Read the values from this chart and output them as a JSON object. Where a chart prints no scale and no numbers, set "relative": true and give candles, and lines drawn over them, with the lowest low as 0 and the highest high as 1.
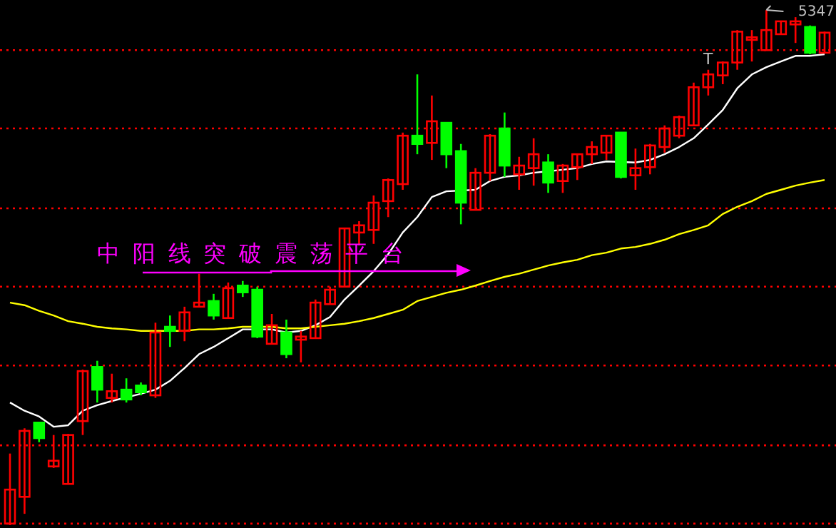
{
  "chart_data": {
    "type": "candlestick",
    "relative": true,
    "categories": [
      null,
      null,
      null,
      null,
      null,
      null,
      null,
      null,
      null,
      null,
      null,
      null,
      null,
      null,
      null,
      null,
      null,
      null,
      null,
      null,
      null,
      null,
      null,
      null,
      null,
      null,
      null,
      null,
      null,
      null,
      null,
      null,
      null,
      null,
      null,
      null,
      null,
      null,
      null,
      null,
      null,
      null,
      null,
      null,
      null,
      null,
      null,
      null,
      null,
      null,
      null,
      null,
      null,
      null,
      null,
      null,
      null
    ],
    "ohlc": [
      [
        0.003,
        0.139,
        0,
        0.069
      ],
      [
        0.055,
        0.188,
        0.022,
        0.183
      ],
      [
        0.199,
        0.199,
        0.161,
        0.169
      ],
      [
        0.114,
        0.175,
        0.111,
        0.125
      ],
      [
        0.08,
        0.177,
        0.08,
        0.175
      ],
      [
        0.202,
        0.302,
        0.175,
        0.299
      ],
      [
        0.307,
        0.319,
        0.238,
        0.263
      ],
      [
        0.247,
        0.294,
        0.238,
        0.26
      ],
      [
        0.263,
        0.285,
        0.238,
        0.244
      ],
      [
        0.271,
        0.277,
        0.252,
        0.258
      ],
      [
        0.252,
        0.393,
        0.247,
        0.374
      ],
      [
        0.385,
        0.407,
        0.346,
        0.377
      ],
      [
        0.377,
        0.424,
        0.357,
        0.413
      ],
      [
        0.424,
        0.488,
        0.424,
        0.432
      ],
      [
        0.435,
        0.449,
        0.399,
        0.407
      ],
      [
        0.402,
        0.471,
        0.402,
        0.46
      ],
      [
        0.465,
        0.474,
        0.443,
        0.452
      ],
      [
        0.457,
        0.463,
        0.363,
        0.366
      ],
      [
        0.352,
        0.41,
        0.352,
        0.388
      ],
      [
        0.374,
        0.399,
        0.324,
        0.332
      ],
      [
        0.36,
        0.377,
        0.316,
        0.366
      ],
      [
        0.363,
        0.438,
        0.363,
        0.432
      ],
      [
        0.429,
        0.463,
        0.429,
        0.457
      ],
      [
        0.463,
        0.576,
        0.463,
        0.576
      ],
      [
        0.568,
        0.59,
        0.543,
        0.582
      ],
      [
        0.573,
        0.64,
        0.546,
        0.626
      ],
      [
        0.629,
        0.673,
        0.598,
        0.67
      ],
      [
        0.662,
        0.762,
        0.651,
        0.756
      ],
      [
        0.756,
        0.875,
        0.72,
        0.74
      ],
      [
        0.742,
        0.834,
        0.709,
        0.784
      ],
      [
        0.781,
        0.781,
        0.693,
        0.72
      ],
      [
        0.726,
        0.74,
        0.584,
        0.626
      ],
      [
        0.612,
        0.693,
        0.612,
        0.684
      ],
      [
        0.684,
        0.759,
        0.668,
        0.756
      ],
      [
        0.77,
        0.801,
        0.676,
        0.698
      ],
      [
        0.681,
        0.715,
        0.651,
        0.698
      ],
      [
        0.693,
        0.751,
        0.659,
        0.72
      ],
      [
        0.704,
        0.72,
        0.645,
        0.665
      ],
      [
        0.668,
        0.701,
        0.645,
        0.698
      ],
      [
        0.695,
        0.72,
        0.67,
        0.72
      ],
      [
        0.72,
        0.745,
        0.701,
        0.734
      ],
      [
        0.723,
        0.756,
        0.709,
        0.756
      ],
      [
        0.762,
        0.762,
        0.673,
        0.676
      ],
      [
        0.679,
        0.731,
        0.651,
        0.693
      ],
      [
        0.695,
        0.74,
        0.681,
        0.737
      ],
      [
        0.734,
        0.776,
        0.723,
        0.77
      ],
      [
        0.756,
        0.795,
        0.751,
        0.792
      ],
      [
        0.776,
        0.859,
        0.776,
        0.85
      ],
      [
        0.85,
        0.884,
        0.834,
        0.875
      ],
      [
        0.873,
        0.9,
        0.856,
        0.898
      ],
      [
        0.898,
        0.961,
        0.884,
        0.958
      ],
      [
        0.942,
        0.961,
        0.9,
        0.947
      ],
      [
        0.922,
        1.0,
        0.922,
        0.961
      ],
      [
        0.953,
        0.978,
        0.953,
        0.978
      ],
      [
        0.972,
        0.986,
        0.936,
        0.978
      ],
      [
        0.967,
        0.97,
        0.914,
        0.917
      ],
      [
        0.917,
        0.958,
        0.917,
        0.956
      ]
    ],
    "colors": [
      "#ff0000",
      "#ff0000",
      "#00ff00",
      "#ff0000",
      "#ff0000",
      "#ff0000",
      "#00ff00",
      "#ff0000",
      "#00ff00",
      "#00ff00",
      "#ff0000",
      "#00ff00",
      "#ff0000",
      "#ff0000",
      "#00ff00",
      "#ff0000",
      "#00ff00",
      "#00ff00",
      "#ff0000",
      "#00ff00",
      "#ff0000",
      "#ff0000",
      "#ff0000",
      "#ff0000",
      "#ff0000",
      "#ff0000",
      "#ff0000",
      "#ff0000",
      "#00ff00",
      "#ff0000",
      "#00ff00",
      "#00ff00",
      "#ff0000",
      "#ff0000",
      "#00ff00",
      "#ff0000",
      "#ff0000",
      "#00ff00",
      "#ff0000",
      "#ff0000",
      "#ff0000",
      "#ff0000",
      "#00ff00",
      "#ff0000",
      "#ff0000",
      "#ff0000",
      "#ff0000",
      "#ff0000",
      "#ff0000",
      "#ff0000",
      "#ff0000",
      "#ff0000",
      "#ff0000",
      "#ff0000",
      "#ff0000",
      "#00ff00",
      "#ff0000"
    ],
    "series": [
      {
        "type": "line",
        "color": "#ffffff",
        "values": [
          0.238,
          0.222,
          0.211,
          0.191,
          0.194,
          0.222,
          0.233,
          0.241,
          null,
          0.255,
          0.263,
          0.28,
          0.305,
          0.332,
          0.346,
          0.363,
          0.38,
          null,
          0.38,
          0.374,
          0.377,
          0.388,
          0.404,
          0.438,
          0.465,
          0.493,
          0.526,
          0.568,
          0.598,
          0.637,
          0.648,
          null,
          0.651,
          0.668,
          0.676,
          0.679,
          0.684,
          null,
          0.69,
          0.693,
          0.701,
          0.706,
          null,
          0.704,
          0.709,
          0.72,
          0.734,
          0.751,
          0.778,
          0.806,
          0.848,
          0.875,
          0.889,
          0.9,
          0.911,
          0.911,
          0.914
        ]
      },
      {
        "type": "line",
        "color": "#ffff00",
        "values": [
          0.432,
          0.427,
          0.416,
          0.407,
          0.396,
          0.391,
          0.385,
          0.382,
          0.38,
          0.377,
          0.377,
          null,
          0.377,
          0.38,
          0.38,
          0.382,
          0.385,
          null,
          0.385,
          0.382,
          0.382,
          0.385,
          0.388,
          0.391,
          0.396,
          0.402,
          0.41,
          0.418,
          0.435,
          0.443,
          0.451,
          0.457,
          0.465,
          0.474,
          0.482,
          0.488,
          0.496,
          0.504,
          0.51,
          0.515,
          0.524,
          0.529,
          0.537,
          0.54,
          0.546,
          0.554,
          0.565,
          0.573,
          0.582,
          0.604,
          0.618,
          0.629,
          0.643,
          0.651,
          0.659,
          0.665,
          0.67
        ]
      }
    ],
    "ref_lines": [
      {
        "axis": "y",
        "value": 0.922,
        "label": null,
        "color": "#ff0000",
        "line_style": "dotted"
      },
      {
        "axis": "y",
        "value": 0.77,
        "label": null,
        "color": "#ff0000",
        "line_style": "dotted"
      },
      {
        "axis": "y",
        "value": 0.615,
        "label": null,
        "color": "#ff0000",
        "line_style": "dotted"
      },
      {
        "axis": "y",
        "value": 0.463,
        "label": null,
        "color": "#ff0000",
        "line_style": "dotted"
      },
      {
        "axis": "y",
        "value": 0.31,
        "label": null,
        "color": "#ff0000",
        "line_style": "dotted"
      },
      {
        "axis": "y",
        "value": 0.155,
        "label": null,
        "color": "#ff0000",
        "line_style": "dotted"
      },
      {
        "axis": "y",
        "value": 0.003,
        "label": null,
        "color": "#ff0000",
        "line_style": "dotted"
      }
    ],
    "annotations": [
      "中阳线突破震荡平台",
      "5347",
      "T"
    ]
  }
}
